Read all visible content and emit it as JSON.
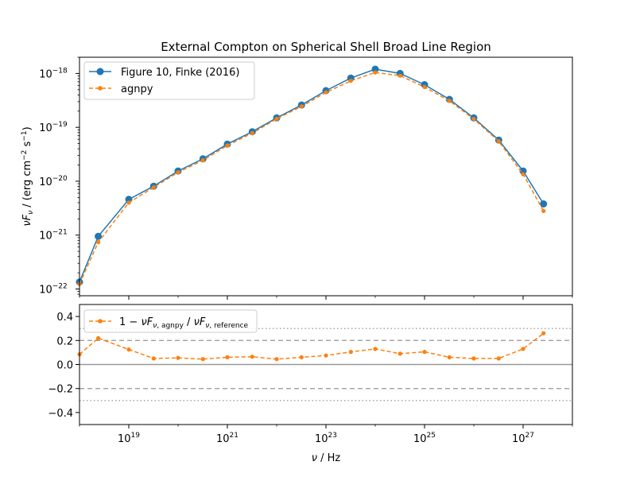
{
  "chart_data": [
    {
      "type": "line",
      "title": "External Compton on Spherical Shell Broad Line Region",
      "ylabel": "νF_ν / (erg cm⁻² s⁻¹)",
      "x_scale": "log",
      "y_scale": "log",
      "xlim": [
        1e+18,
        1e+28
      ],
      "ylim": [
        7.5e-23,
        2e-18
      ],
      "legend_position": "upper-left",
      "x_ticks": [
        {
          "value": 1e+19,
          "base": "10",
          "exp": "19"
        },
        {
          "value": 1e+21,
          "base": "10",
          "exp": "21"
        },
        {
          "value": 1e+23,
          "base": "10",
          "exp": "23"
        },
        {
          "value": 1e+25,
          "base": "10",
          "exp": "25"
        },
        {
          "value": 1e+27,
          "base": "10",
          "exp": "27"
        }
      ],
      "y_ticks": [
        {
          "value": 1e-22,
          "base": "10",
          "exp": "−22"
        },
        {
          "value": 1e-21,
          "base": "10",
          "exp": "−21"
        },
        {
          "value": 1e-20,
          "base": "10",
          "exp": "−20"
        },
        {
          "value": 1e-19,
          "base": "10",
          "exp": "−19"
        },
        {
          "value": 1e-18,
          "base": "10",
          "exp": "−18"
        }
      ],
      "series": [
        {
          "name": "Figure 10, Finke (2016)",
          "color": "#1f77b4",
          "style": "solid",
          "marker": "circle",
          "x": [
            1e+18,
            2.4e+18,
            1e+19,
            3.2e+19,
            1e+20,
            3.2e+20,
            1e+21,
            3.2e+21,
            1e+22,
            3.2e+22,
            1e+23,
            3.2e+23,
            1e+24,
            3.2e+24,
            1e+25,
            3.2e+25,
            1e+26,
            3.2e+26,
            1e+27,
            2.6e+27
          ],
          "y": [
            1.35e-22,
            9.5e-22,
            4.6e-21,
            8.1e-21,
            1.55e-20,
            2.6e-20,
            4.9e-20,
            8.3e-20,
            1.5e-19,
            2.6e-19,
            4.8e-19,
            8.2e-19,
            1.2e-18,
            1e-18,
            6.2e-19,
            3.3e-19,
            1.5e-19,
            5.8e-20,
            1.55e-20,
            3.8e-21
          ]
        },
        {
          "name": "agnpy",
          "color": "#ff7f0e",
          "style": "dashed",
          "marker": "dot",
          "x": [
            1e+18,
            2.4e+18,
            1e+19,
            3.2e+19,
            1e+20,
            3.2e+20,
            1e+21,
            3.2e+21,
            1e+22,
            3.2e+22,
            1e+23,
            3.2e+23,
            1e+24,
            3.2e+24,
            1e+25,
            3.2e+25,
            1e+26,
            3.2e+26,
            1e+27,
            2.6e+27
          ],
          "y": [
            1.24e-22,
            7.4e-22,
            4e-21,
            7.7e-21,
            1.46e-20,
            2.45e-20,
            4.6e-20,
            7.8e-20,
            1.44e-19,
            2.45e-19,
            4.45e-19,
            7.3e-19,
            1.04e-18,
            9.1e-19,
            5.6e-19,
            3.1e-19,
            1.43e-19,
            5.5e-20,
            1.35e-20,
            2.8e-21
          ]
        }
      ]
    },
    {
      "type": "line",
      "xlabel": "ν / Hz",
      "x_scale": "log",
      "xlim": [
        1e+18,
        1e+28
      ],
      "ylim": [
        -0.5,
        0.5
      ],
      "legend_position": "upper-left",
      "y_ticks": [
        {
          "value": 0.4,
          "label": "0.4"
        },
        {
          "value": 0.2,
          "label": "0.2"
        },
        {
          "value": 0.0,
          "label": "0.0"
        },
        {
          "value": -0.2,
          "label": "−0.2"
        },
        {
          "value": -0.4,
          "label": "−0.4"
        }
      ],
      "reference_lines": [
        {
          "y": 0.0,
          "style": "solid"
        },
        {
          "y": 0.2,
          "style": "dashed"
        },
        {
          "y": -0.2,
          "style": "dashed"
        },
        {
          "y": 0.3,
          "style": "dotted"
        },
        {
          "y": -0.3,
          "style": "dotted"
        }
      ],
      "series": [
        {
          "name": "1 − νF_ν,agnpy / νF_ν,reference",
          "color": "#ff7f0e",
          "style": "dashed",
          "marker": "dot",
          "x": [
            1e+18,
            2.4e+18,
            1e+19,
            3.2e+19,
            1e+20,
            3.2e+20,
            1e+21,
            3.2e+21,
            1e+22,
            3.2e+22,
            1e+23,
            3.2e+23,
            1e+24,
            3.2e+24,
            1e+25,
            3.2e+25,
            1e+26,
            3.2e+26,
            1e+27,
            2.6e+27
          ],
          "y": [
            0.085,
            0.22,
            0.125,
            0.05,
            0.055,
            0.045,
            0.06,
            0.065,
            0.045,
            0.06,
            0.075,
            0.105,
            0.13,
            0.09,
            0.105,
            0.06,
            0.05,
            0.05,
            0.13,
            0.26
          ]
        }
      ]
    }
  ]
}
